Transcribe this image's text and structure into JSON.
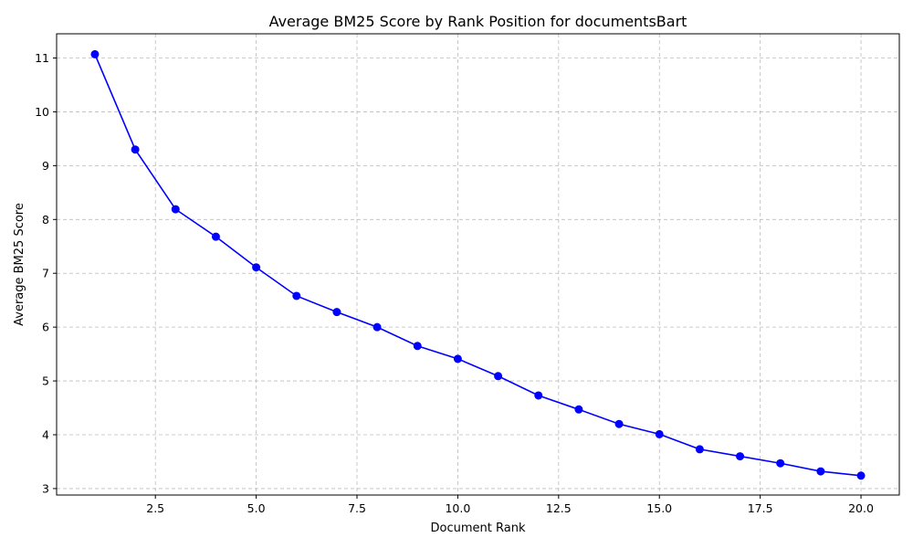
{
  "chart_data": {
    "type": "line",
    "title": "Average BM25 Score by Rank Position for documentsBart",
    "xlabel": "Document Rank",
    "ylabel": "Average BM25 Score",
    "xlim": [
      0.05,
      20.95
    ],
    "ylim": [
      2.88,
      11.45
    ],
    "xticks": [
      2.5,
      5.0,
      7.5,
      10.0,
      12.5,
      15.0,
      17.5,
      20.0
    ],
    "xtick_labels": [
      "2.5",
      "5.0",
      "7.5",
      "10.0",
      "12.5",
      "15.0",
      "17.5",
      "20.0"
    ],
    "yticks": [
      3,
      4,
      5,
      6,
      7,
      8,
      9,
      10,
      11
    ],
    "ytick_labels": [
      "3",
      "4",
      "5",
      "6",
      "7",
      "8",
      "9",
      "10",
      "11"
    ],
    "grid": true,
    "series": [
      {
        "color": "#0000ff",
        "marker": "circle",
        "x": [
          1,
          2,
          3,
          4,
          5,
          6,
          7,
          8,
          9,
          10,
          11,
          12,
          13,
          14,
          15,
          16,
          17,
          18,
          19,
          20
        ],
        "y": [
          11.07,
          9.3,
          8.19,
          7.68,
          7.11,
          6.58,
          6.28,
          6.0,
          5.65,
          5.41,
          5.09,
          4.73,
          4.47,
          4.2,
          4.01,
          3.73,
          3.6,
          3.47,
          3.32,
          3.24
        ]
      }
    ]
  }
}
